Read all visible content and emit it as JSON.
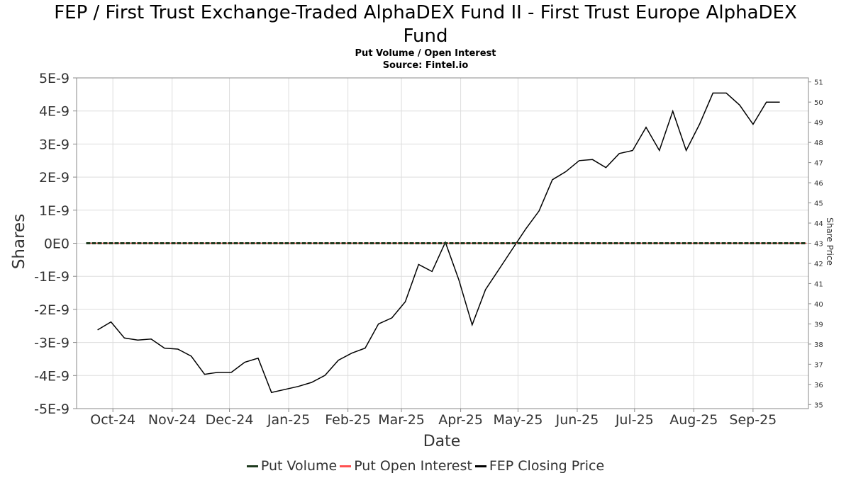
{
  "header": {
    "title_line1": "FEP / First Trust Exchange-Traded AlphaDEX Fund II - First Trust Europe AlphaDEX",
    "title_line2": "Fund",
    "subtitle": "Put Volume / Open Interest",
    "source": "Source: Fintel.io"
  },
  "legend": {
    "items": [
      {
        "label": "Put Volume",
        "color": "#1e3a1e"
      },
      {
        "label": "Put Open Interest",
        "color": "#ff5050"
      },
      {
        "label": "FEP Closing Price",
        "color": "#000000"
      }
    ]
  },
  "chart_data": {
    "type": "line",
    "title": "FEP / First Trust Exchange-Traded AlphaDEX Fund II - First Trust Europe AlphaDEX Fund",
    "subtitle": "Put Volume / Open Interest",
    "xlabel": "Date",
    "ylabel": "Shares",
    "y2label": "Share Price",
    "x_range": [
      "2024-09-12",
      "2025-09-30"
    ],
    "x_ticks": [
      {
        "date": "2024-10-01",
        "label": "Oct-24"
      },
      {
        "date": "2024-11-01",
        "label": "Nov-24"
      },
      {
        "date": "2024-12-01",
        "label": "Dec-24"
      },
      {
        "date": "2025-01-01",
        "label": "Jan-25"
      },
      {
        "date": "2025-02-01",
        "label": "Feb-25"
      },
      {
        "date": "2025-03-01",
        "label": "Mar-25"
      },
      {
        "date": "2025-04-01",
        "label": "Apr-25"
      },
      {
        "date": "2025-05-01",
        "label": "May-25"
      },
      {
        "date": "2025-06-01",
        "label": "Jun-25"
      },
      {
        "date": "2025-07-01",
        "label": "Jul-25"
      },
      {
        "date": "2025-08-01",
        "label": "Aug-25"
      },
      {
        "date": "2025-09-01",
        "label": "Sep-25"
      }
    ],
    "ylim": [
      -5e-09,
      5e-09
    ],
    "y_ticks": [
      "5E-9",
      "4E-9",
      "3E-9",
      "2E-9",
      "1E-9",
      "0E0",
      "-1E-9",
      "-2E-9",
      "-3E-9",
      "-4E-9",
      "-5E-9"
    ],
    "y_tick_values": [
      5e-09,
      4e-09,
      3e-09,
      2e-09,
      1e-09,
      0,
      -1e-09,
      -2e-09,
      -3e-09,
      -4e-09,
      -5e-09
    ],
    "y2lim": [
      34.8,
      51.2
    ],
    "y2_ticks": [
      "35",
      "36",
      "37",
      "38",
      "39",
      "40",
      "41",
      "42",
      "43",
      "44",
      "45",
      "46",
      "47",
      "48",
      "49",
      "50",
      "51"
    ],
    "grid": true,
    "legend_position": "bottom",
    "series": [
      {
        "name": "Put Volume",
        "axis": "left",
        "color": "#1e3a1e",
        "dates": [
          "2024-09-17",
          "2025-09-29"
        ],
        "values": [
          0,
          0
        ]
      },
      {
        "name": "Put Open Interest",
        "axis": "left",
        "color": "#ff5050",
        "dates": [
          "2024-09-17",
          "2025-09-29"
        ],
        "values": [
          0,
          0
        ]
      },
      {
        "name": "FEP Closing Price",
        "axis": "right",
        "color": "#000000",
        "dates": [
          "2024-09-23",
          "2024-09-30",
          "2024-10-07",
          "2024-10-14",
          "2024-10-21",
          "2024-10-28",
          "2024-11-04",
          "2024-11-11",
          "2024-11-18",
          "2024-11-25",
          "2024-12-02",
          "2024-12-09",
          "2024-12-16",
          "2024-12-23",
          "2025-01-06",
          "2025-01-13",
          "2025-01-20",
          "2025-01-27",
          "2025-02-03",
          "2025-02-10",
          "2025-02-17",
          "2025-02-24",
          "2025-03-03",
          "2025-03-10",
          "2025-03-17",
          "2025-03-24",
          "2025-03-31",
          "2025-04-07",
          "2025-04-14",
          "2025-04-21",
          "2025-04-28",
          "2025-05-05",
          "2025-05-12",
          "2025-05-19",
          "2025-05-26",
          "2025-06-02",
          "2025-06-09",
          "2025-06-16",
          "2025-06-23",
          "2025-06-30",
          "2025-07-07",
          "2025-07-14",
          "2025-07-21",
          "2025-07-28",
          "2025-08-04",
          "2025-08-11",
          "2025-08-18",
          "2025-08-25",
          "2025-09-01",
          "2025-09-08",
          "2025-09-15"
        ],
        "values": [
          38.7,
          39.1,
          38.3,
          38.2,
          38.25,
          37.8,
          37.75,
          37.4,
          36.5,
          36.6,
          36.6,
          37.1,
          37.3,
          35.6,
          35.9,
          36.1,
          36.45,
          37.2,
          37.55,
          37.8,
          39.0,
          39.3,
          40.1,
          41.95,
          41.6,
          43.05,
          41.2,
          38.95,
          40.7,
          41.7,
          42.7,
          43.7,
          44.6,
          46.15,
          46.55,
          47.1,
          47.15,
          46.75,
          47.45,
          47.6,
          48.75,
          47.6,
          49.55,
          47.6,
          48.9,
          50.45,
          50.45,
          49.85,
          48.9,
          50.0,
          50.0
        ]
      }
    ]
  }
}
